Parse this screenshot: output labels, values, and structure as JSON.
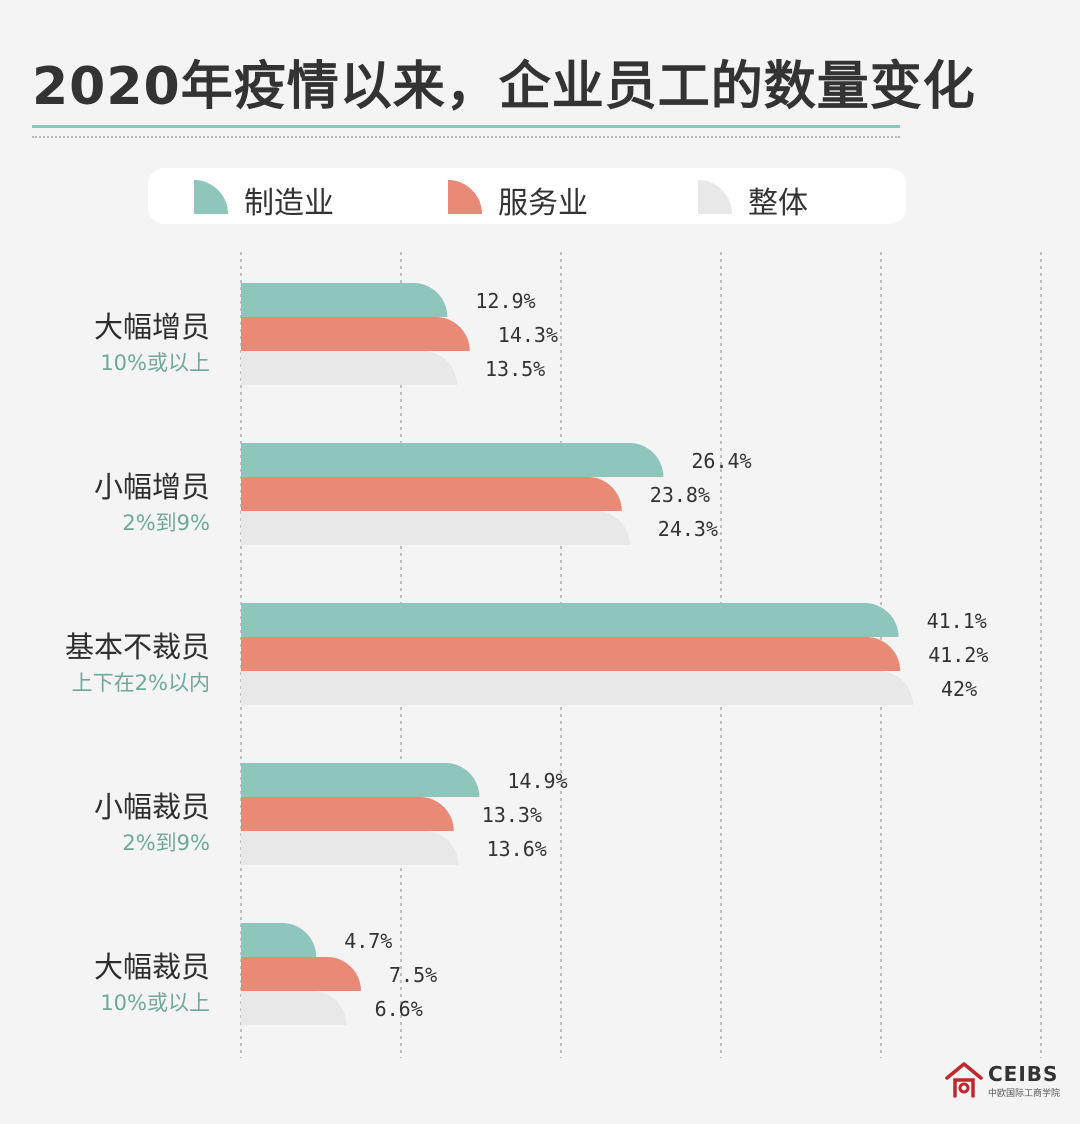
{
  "title": "2020年疫情以来，企业员工的数量变化",
  "legend": [
    {
      "label": "制造业",
      "color": "#8ec6bc"
    },
    {
      "label": "服务业",
      "color": "#e88a75"
    },
    {
      "label": "整体",
      "color": "#e8e8e8"
    }
  ],
  "logo": {
    "name": "CEIBS",
    "sub": "中欧国际工商学院"
  },
  "chart_data": {
    "type": "bar",
    "orientation": "horizontal",
    "categories": [
      {
        "label": "大幅增员",
        "sublabel": "10%或以上"
      },
      {
        "label": "小幅增员",
        "sublabel": "2%到9%"
      },
      {
        "label": "基本不裁员",
        "sublabel": "上下在2%以内"
      },
      {
        "label": "小幅裁员",
        "sublabel": "2%到9%"
      },
      {
        "label": "大幅裁员",
        "sublabel": "10%或以上"
      }
    ],
    "series": [
      {
        "name": "制造业",
        "color": "#8ec6bc",
        "values": [
          12.9,
          26.4,
          41.1,
          14.9,
          4.7
        ],
        "labels": [
          "12.9%",
          "26.4%",
          "41.1%",
          "14.9%",
          "4.7%"
        ]
      },
      {
        "name": "服务业",
        "color": "#e88a75",
        "values": [
          14.3,
          23.8,
          41.2,
          13.3,
          7.5
        ],
        "labels": [
          "14.3%",
          "23.8%",
          "41.2%",
          "13.3%",
          "7.5%"
        ]
      },
      {
        "name": "整体",
        "color": "#e8e8e8",
        "values": [
          13.5,
          24.3,
          42,
          13.6,
          6.6
        ],
        "labels": [
          "13.5%",
          "24.3%",
          "42%",
          "13.6%",
          "6.6%"
        ]
      }
    ],
    "xlim": [
      0,
      50
    ],
    "grid": true,
    "legend_position": "top"
  }
}
